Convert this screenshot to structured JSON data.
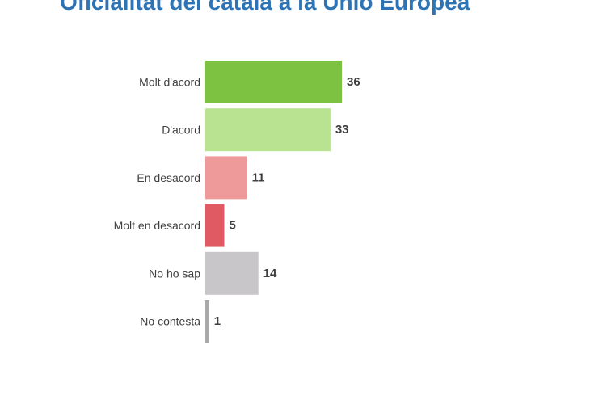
{
  "chart_data": {
    "type": "bar",
    "orientation": "horizontal",
    "title": "Oficialitat del català a la Unió Europea",
    "categories": [
      "Molt d'acord",
      "D'acord",
      "En desacord",
      "Molt en desacord",
      "No ho sap",
      "No contesta"
    ],
    "values": [
      36,
      33,
      11,
      5,
      14,
      1
    ],
    "colors": [
      "#7dc241",
      "#b9e291",
      "#ef9a9a",
      "#e05a64",
      "#c8c6c9",
      "#a9a9a9"
    ],
    "xlim": [
      0,
      40
    ],
    "xlabel": "",
    "ylabel": "",
    "grid": false,
    "legend": "none"
  }
}
